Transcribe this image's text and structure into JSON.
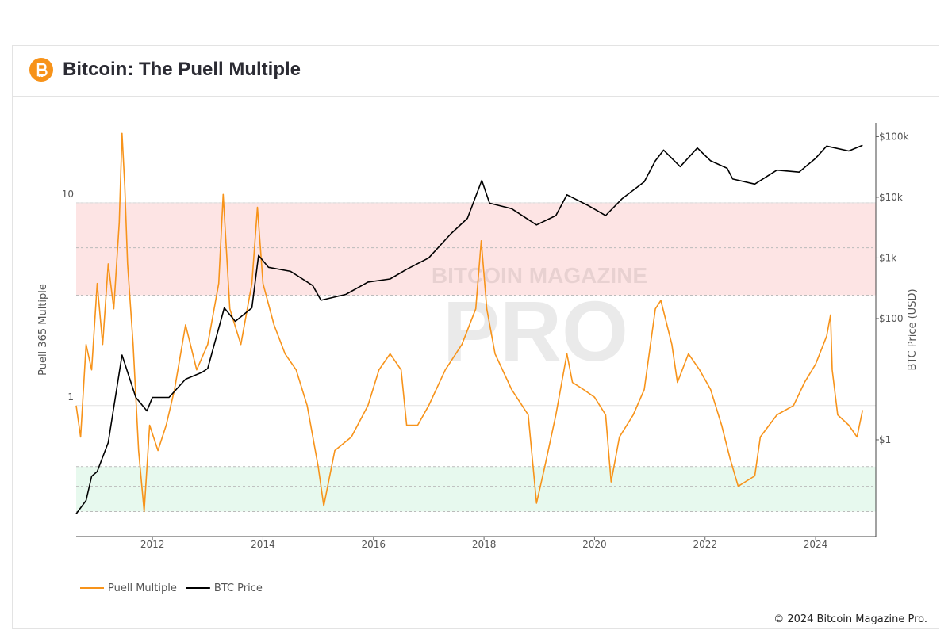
{
  "chart_data": {
    "type": "line",
    "title": "Bitcoin: The Puell Multiple",
    "y_label": "Puell 365 Multiple",
    "y2_label": "BTC Price (USD)",
    "watermark": [
      "BITCOIN MAGAZINE",
      "PRO"
    ],
    "footer": "© 2024 Bitcoin Magazine Pro.",
    "log_y": true,
    "log_y2": true,
    "xlim": [
      2010.62,
      2025.09
    ],
    "xticks": [
      2012,
      2014,
      2016,
      2018,
      2020,
      2022,
      2024
    ],
    "ylim": [
      0.226,
      24.8
    ],
    "yticks": [
      1,
      10
    ],
    "y2lim": [
      0.0254,
      169000
    ],
    "y2ticks": [
      {
        "value": 1,
        "label": "$1"
      },
      {
        "value": 100,
        "label": "$100"
      },
      {
        "value": 1000,
        "label": "$1k"
      },
      {
        "value": 10000,
        "label": "$10k"
      },
      {
        "value": 100000,
        "label": "$100k"
      }
    ],
    "bands": [
      {
        "from": 3.5,
        "to": 10,
        "color": "#fde4e4"
      },
      {
        "from": 0.3,
        "to": 0.5,
        "color": "#e7f9ee"
      }
    ],
    "dashed_lines": [
      10,
      6,
      3.5,
      0.5,
      0.4,
      0.3
    ],
    "legend": "bottom-left",
    "series": [
      {
        "name": "Puell Multiple",
        "color": "#f7931a",
        "axis": "y",
        "x": [
          2010.62,
          2010.7,
          2010.8,
          2010.9,
          2011.0,
          2011.1,
          2011.2,
          2011.3,
          2011.4,
          2011.45,
          2011.5,
          2011.55,
          2011.65,
          2011.75,
          2011.85,
          2011.95,
          2012.1,
          2012.25,
          2012.4,
          2012.6,
          2012.8,
          2013.0,
          2013.2,
          2013.28,
          2013.4,
          2013.6,
          2013.8,
          2013.9,
          2014.0,
          2014.2,
          2014.4,
          2014.6,
          2014.8,
          2015.0,
          2015.1,
          2015.3,
          2015.6,
          2015.9,
          2016.1,
          2016.3,
          2016.5,
          2016.6,
          2016.8,
          2017.0,
          2017.3,
          2017.6,
          2017.85,
          2017.95,
          2018.05,
          2018.2,
          2018.5,
          2018.8,
          2018.95,
          2019.1,
          2019.3,
          2019.5,
          2019.6,
          2019.8,
          2020.0,
          2020.2,
          2020.3,
          2020.45,
          2020.7,
          2020.9,
          2021.1,
          2021.2,
          2021.4,
          2021.5,
          2021.7,
          2021.9,
          2022.1,
          2022.3,
          2022.45,
          2022.6,
          2022.9,
          2023.0,
          2023.3,
          2023.6,
          2023.8,
          2024.0,
          2024.2,
          2024.27,
          2024.3,
          2024.4,
          2024.6,
          2024.75,
          2024.85
        ],
        "values": [
          1.0,
          0.7,
          2.0,
          1.5,
          4.0,
          2.0,
          5.0,
          3.0,
          8.0,
          22,
          12,
          5,
          2.0,
          0.6,
          0.3,
          0.8,
          0.6,
          0.8,
          1.2,
          2.5,
          1.5,
          2.0,
          4.0,
          11,
          3.0,
          2.0,
          4.0,
          9.5,
          4.0,
          2.5,
          1.8,
          1.5,
          1.0,
          0.5,
          0.32,
          0.6,
          0.7,
          1.0,
          1.5,
          1.8,
          1.5,
          0.8,
          0.8,
          1.0,
          1.5,
          2.0,
          3.0,
          6.5,
          3.0,
          1.8,
          1.2,
          0.9,
          0.33,
          0.5,
          0.9,
          1.8,
          1.3,
          1.2,
          1.1,
          0.9,
          0.42,
          0.7,
          0.9,
          1.2,
          3.0,
          3.3,
          2.0,
          1.3,
          1.8,
          1.5,
          1.2,
          0.8,
          0.55,
          0.4,
          0.45,
          0.7,
          0.9,
          1.0,
          1.3,
          1.6,
          2.2,
          2.8,
          1.5,
          0.9,
          0.8,
          0.7,
          0.95
        ]
      },
      {
        "name": "BTC Price",
        "color": "#000000",
        "axis": "y2",
        "x": [
          2010.62,
          2010.8,
          2010.9,
          2011.0,
          2011.2,
          2011.45,
          2011.7,
          2011.9,
          2012.0,
          2012.3,
          2012.6,
          2012.9,
          2013.0,
          2013.3,
          2013.5,
          2013.8,
          2013.92,
          2014.1,
          2014.5,
          2014.9,
          2015.05,
          2015.5,
          2015.9,
          2016.3,
          2016.6,
          2017.0,
          2017.4,
          2017.7,
          2017.96,
          2018.1,
          2018.5,
          2018.95,
          2019.3,
          2019.5,
          2019.9,
          2020.2,
          2020.5,
          2020.9,
          2021.1,
          2021.25,
          2021.55,
          2021.86,
          2022.1,
          2022.4,
          2022.5,
          2022.9,
          2023.3,
          2023.7,
          2024.0,
          2024.2,
          2024.6,
          2024.85
        ],
        "values": [
          0.06,
          0.1,
          0.25,
          0.3,
          0.9,
          25,
          5,
          3,
          5,
          5,
          10,
          13,
          15,
          150,
          90,
          150,
          1100,
          700,
          600,
          350,
          200,
          250,
          400,
          450,
          650,
          1000,
          2500,
          4500,
          19000,
          8000,
          6500,
          3500,
          5000,
          11000,
          7200,
          5000,
          9500,
          18000,
          40000,
          60000,
          32000,
          65000,
          40000,
          30000,
          20000,
          16500,
          28000,
          26000,
          44000,
          70000,
          58000,
          72000
        ]
      }
    ]
  }
}
